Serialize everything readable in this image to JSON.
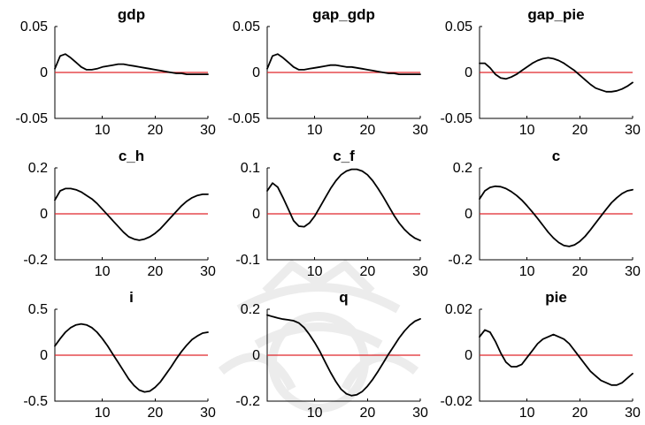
{
  "chart_data": [
    {
      "type": "line",
      "title": "gdp",
      "xlabel": "",
      "ylabel": "",
      "xlim": [
        1,
        30
      ],
      "ylim": [
        -0.05,
        0.05
      ],
      "xticks": [
        10,
        20,
        30
      ],
      "yticks": [
        -0.05,
        0,
        0.05
      ],
      "ytick_labels": [
        "-0.05",
        "0",
        "0.05"
      ],
      "reference_line": {
        "y": 0,
        "color": "#e0262b"
      },
      "series": [
        {
          "x": [
            1,
            2,
            3,
            4,
            5,
            6,
            7,
            8,
            9,
            10,
            11,
            12,
            13,
            14,
            15,
            16,
            17,
            18,
            19,
            20,
            21,
            22,
            23,
            24,
            25,
            26,
            27,
            28,
            29,
            30
          ],
          "values": [
            0.004,
            0.018,
            0.02,
            0.016,
            0.011,
            0.006,
            0.003,
            0.003,
            0.004,
            0.006,
            0.007,
            0.008,
            0.009,
            0.009,
            0.008,
            0.007,
            0.006,
            0.005,
            0.004,
            0.003,
            0.002,
            0.001,
            0.0,
            -0.001,
            -0.001,
            -0.002,
            -0.002,
            -0.002,
            -0.002,
            -0.002
          ]
        }
      ]
    },
    {
      "type": "line",
      "title": "gap_gdp",
      "xlabel": "",
      "ylabel": "",
      "xlim": [
        1,
        30
      ],
      "ylim": [
        -0.05,
        0.05
      ],
      "xticks": [
        10,
        20,
        30
      ],
      "yticks": [
        -0.05,
        0,
        0.05
      ],
      "ytick_labels": [
        "-0.05",
        "0",
        "0.05"
      ],
      "reference_line": {
        "y": 0,
        "color": "#e0262b"
      },
      "series": [
        {
          "x": [
            1,
            2,
            3,
            4,
            5,
            6,
            7,
            8,
            9,
            10,
            11,
            12,
            13,
            14,
            15,
            16,
            17,
            18,
            19,
            20,
            21,
            22,
            23,
            24,
            25,
            26,
            27,
            28,
            29,
            30
          ],
          "values": [
            0.004,
            0.018,
            0.02,
            0.016,
            0.011,
            0.006,
            0.003,
            0.003,
            0.004,
            0.005,
            0.006,
            0.007,
            0.008,
            0.008,
            0.007,
            0.006,
            0.006,
            0.005,
            0.004,
            0.003,
            0.002,
            0.001,
            0.0,
            -0.001,
            -0.001,
            -0.002,
            -0.002,
            -0.002,
            -0.002,
            -0.002
          ]
        }
      ]
    },
    {
      "type": "line",
      "title": "gap_pie",
      "xlabel": "",
      "ylabel": "",
      "xlim": [
        1,
        30
      ],
      "ylim": [
        -0.05,
        0.05
      ],
      "xticks": [
        10,
        20,
        30
      ],
      "yticks": [
        -0.05,
        0,
        0.05
      ],
      "ytick_labels": [
        "-0.05",
        "0",
        "0.05"
      ],
      "reference_line": {
        "y": 0,
        "color": "#e0262b"
      },
      "series": [
        {
          "x": [
            1,
            2,
            3,
            4,
            5,
            6,
            7,
            8,
            9,
            10,
            11,
            12,
            13,
            14,
            15,
            16,
            17,
            18,
            19,
            20,
            21,
            22,
            23,
            24,
            25,
            26,
            27,
            28,
            29,
            30
          ],
          "values": [
            0.01,
            0.01,
            0.005,
            -0.002,
            -0.006,
            -0.007,
            -0.005,
            -0.002,
            0.002,
            0.006,
            0.01,
            0.013,
            0.015,
            0.016,
            0.015,
            0.013,
            0.01,
            0.006,
            0.002,
            -0.003,
            -0.008,
            -0.013,
            -0.017,
            -0.019,
            -0.021,
            -0.021,
            -0.02,
            -0.018,
            -0.015,
            -0.011
          ]
        }
      ]
    },
    {
      "type": "line",
      "title": "c_h",
      "xlabel": "",
      "ylabel": "",
      "xlim": [
        1,
        30
      ],
      "ylim": [
        -0.2,
        0.2
      ],
      "xticks": [
        10,
        20,
        30
      ],
      "yticks": [
        -0.2,
        0,
        0.2
      ],
      "ytick_labels": [
        "-0.2",
        "0",
        "0.2"
      ],
      "reference_line": {
        "y": 0,
        "color": "#e0262b"
      },
      "series": [
        {
          "x": [
            1,
            2,
            3,
            4,
            5,
            6,
            7,
            8,
            9,
            10,
            11,
            12,
            13,
            14,
            15,
            16,
            17,
            18,
            19,
            20,
            21,
            22,
            23,
            24,
            25,
            26,
            27,
            28,
            29,
            30
          ],
          "values": [
            0.06,
            0.1,
            0.11,
            0.11,
            0.105,
            0.095,
            0.08,
            0.065,
            0.045,
            0.02,
            -0.005,
            -0.03,
            -0.055,
            -0.08,
            -0.1,
            -0.11,
            -0.115,
            -0.11,
            -0.1,
            -0.085,
            -0.065,
            -0.04,
            -0.015,
            0.01,
            0.035,
            0.055,
            0.07,
            0.08,
            0.085,
            0.085
          ]
        }
      ]
    },
    {
      "type": "line",
      "title": "c_f",
      "xlabel": "",
      "ylabel": "",
      "xlim": [
        1,
        30
      ],
      "ylim": [
        -0.1,
        0.1
      ],
      "xticks": [
        10,
        20,
        30
      ],
      "yticks": [
        -0.1,
        0,
        0.1
      ],
      "ytick_labels": [
        "-0.1",
        "0",
        "0.1"
      ],
      "reference_line": {
        "y": 0,
        "color": "#e0262b"
      },
      "series": [
        {
          "x": [
            1,
            2,
            3,
            4,
            5,
            6,
            7,
            8,
            9,
            10,
            11,
            12,
            13,
            14,
            15,
            16,
            17,
            18,
            19,
            20,
            21,
            22,
            23,
            24,
            25,
            26,
            27,
            28,
            29,
            30
          ],
          "values": [
            0.05,
            0.067,
            0.058,
            0.035,
            0.01,
            -0.015,
            -0.027,
            -0.028,
            -0.02,
            -0.005,
            0.015,
            0.035,
            0.055,
            0.072,
            0.085,
            0.093,
            0.097,
            0.097,
            0.093,
            0.085,
            0.072,
            0.055,
            0.037,
            0.017,
            -0.003,
            -0.02,
            -0.034,
            -0.045,
            -0.053,
            -0.058
          ]
        }
      ]
    },
    {
      "type": "line",
      "title": "c",
      "xlabel": "",
      "ylabel": "",
      "xlim": [
        1,
        30
      ],
      "ylim": [
        -0.2,
        0.2
      ],
      "xticks": [
        10,
        20,
        30
      ],
      "yticks": [
        -0.2,
        0,
        0.2
      ],
      "ytick_labels": [
        "-0.2",
        "0",
        "0.2"
      ],
      "reference_line": {
        "y": 0,
        "color": "#e0262b"
      },
      "series": [
        {
          "x": [
            1,
            2,
            3,
            4,
            5,
            6,
            7,
            8,
            9,
            10,
            11,
            12,
            13,
            14,
            15,
            16,
            17,
            18,
            19,
            20,
            21,
            22,
            23,
            24,
            25,
            26,
            27,
            28,
            29,
            30
          ],
          "values": [
            0.065,
            0.1,
            0.115,
            0.12,
            0.118,
            0.11,
            0.097,
            0.08,
            0.06,
            0.035,
            0.008,
            -0.02,
            -0.05,
            -0.08,
            -0.105,
            -0.125,
            -0.138,
            -0.142,
            -0.135,
            -0.12,
            -0.098,
            -0.07,
            -0.04,
            -0.01,
            0.02,
            0.048,
            0.07,
            0.088,
            0.1,
            0.105
          ]
        }
      ]
    },
    {
      "type": "line",
      "title": "i",
      "xlabel": "",
      "ylabel": "",
      "xlim": [
        1,
        30
      ],
      "ylim": [
        -0.5,
        0.5
      ],
      "xticks": [
        10,
        20,
        30
      ],
      "yticks": [
        -0.5,
        0,
        0.5
      ],
      "ytick_labels": [
        "-0.5",
        "0",
        "0.5"
      ],
      "reference_line": {
        "y": 0,
        "color": "#e0262b"
      },
      "series": [
        {
          "x": [
            1,
            2,
            3,
            4,
            5,
            6,
            7,
            8,
            9,
            10,
            11,
            12,
            13,
            14,
            15,
            16,
            17,
            18,
            19,
            20,
            21,
            22,
            23,
            24,
            25,
            26,
            27,
            28,
            29,
            30
          ],
          "values": [
            0.1,
            0.18,
            0.25,
            0.3,
            0.33,
            0.34,
            0.33,
            0.3,
            0.25,
            0.18,
            0.1,
            0.01,
            -0.08,
            -0.17,
            -0.26,
            -0.33,
            -0.38,
            -0.4,
            -0.39,
            -0.35,
            -0.29,
            -0.21,
            -0.13,
            -0.04,
            0.04,
            0.11,
            0.17,
            0.21,
            0.24,
            0.25
          ]
        }
      ]
    },
    {
      "type": "line",
      "title": "q",
      "xlabel": "",
      "ylabel": "",
      "xlim": [
        1,
        30
      ],
      "ylim": [
        -0.2,
        0.2
      ],
      "xticks": [
        10,
        20,
        30
      ],
      "yticks": [
        -0.2,
        0,
        0.2
      ],
      "ytick_labels": [
        "-0.2",
        "0",
        "0.2"
      ],
      "reference_line": {
        "y": 0,
        "color": "#e0262b"
      },
      "series": [
        {
          "x": [
            1,
            2,
            3,
            4,
            5,
            6,
            7,
            8,
            9,
            10,
            11,
            12,
            13,
            14,
            15,
            16,
            17,
            18,
            19,
            20,
            21,
            22,
            23,
            24,
            25,
            26,
            27,
            28,
            29,
            30
          ],
          "values": [
            0.175,
            0.168,
            0.162,
            0.157,
            0.154,
            0.15,
            0.14,
            0.12,
            0.09,
            0.055,
            0.015,
            -0.03,
            -0.075,
            -0.115,
            -0.148,
            -0.168,
            -0.176,
            -0.172,
            -0.158,
            -0.135,
            -0.105,
            -0.07,
            -0.033,
            0.005,
            0.04,
            0.075,
            0.105,
            0.13,
            0.148,
            0.158
          ]
        }
      ]
    },
    {
      "type": "line",
      "title": "pie",
      "xlabel": "",
      "ylabel": "",
      "xlim": [
        1,
        30
      ],
      "ylim": [
        -0.02,
        0.02
      ],
      "xticks": [
        10,
        20,
        30
      ],
      "yticks": [
        -0.02,
        0,
        0.02
      ],
      "ytick_labels": [
        "-0.02",
        "0",
        "0.02"
      ],
      "reference_line": {
        "y": 0,
        "color": "#e0262b"
      },
      "series": [
        {
          "x": [
            1,
            2,
            3,
            4,
            5,
            6,
            7,
            8,
            9,
            10,
            11,
            12,
            13,
            14,
            15,
            16,
            17,
            18,
            19,
            20,
            21,
            22,
            23,
            24,
            25,
            26,
            27,
            28,
            29,
            30
          ],
          "values": [
            0.008,
            0.011,
            0.01,
            0.006,
            0.001,
            -0.003,
            -0.005,
            -0.005,
            -0.004,
            -0.001,
            0.002,
            0.005,
            0.007,
            0.008,
            0.009,
            0.008,
            0.007,
            0.005,
            0.002,
            -0.001,
            -0.004,
            -0.007,
            -0.009,
            -0.011,
            -0.012,
            -0.013,
            -0.013,
            -0.012,
            -0.01,
            -0.008
          ]
        }
      ]
    }
  ]
}
